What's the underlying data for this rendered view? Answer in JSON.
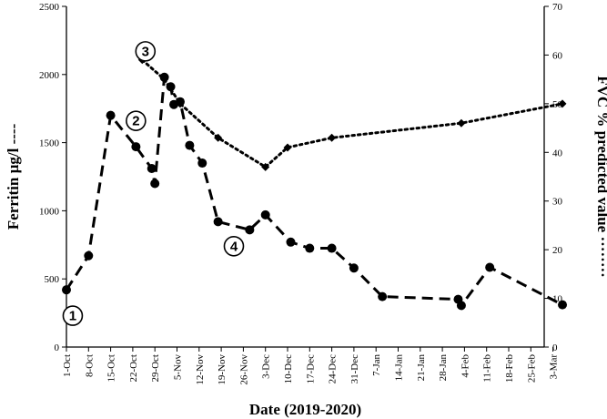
{
  "chart_data": {
    "type": "line",
    "xlabel": "Date (2019-2020)",
    "ylabel_left": "Ferritin µg/l",
    "ylabel_right": "FVC % predicted value",
    "ylim_left": [
      0,
      2500
    ],
    "ylim_right": [
      0,
      70
    ],
    "yticks_left": [
      "0",
      "500",
      "1000",
      "1500",
      "2000",
      "2500"
    ],
    "yticks_right": [
      "0",
      "10",
      "20",
      "30",
      "40",
      "50",
      "60",
      "70"
    ],
    "x_tick_labels": [
      "1-Oct",
      "8-Oct",
      "15-Oct",
      "22-Oct",
      "29-Oct",
      "5-Nov",
      "12-Nov",
      "19-Nov",
      "26-Nov",
      "3-Dec",
      "10-Dec",
      "17-Dec",
      "24-Dec",
      "31-Dec",
      "7-Jan",
      "14-Jan",
      "21-Jan",
      "28-Jan",
      "4-Feb",
      "11-Feb",
      "18-Feb",
      "25-Feb",
      "3-Mar"
    ],
    "series": [
      {
        "axis": "left",
        "style": "dashed",
        "marker": "circle",
        "points": [
          {
            "x": "2019-10-01",
            "y": 420
          },
          {
            "x": "2019-10-08",
            "y": 670
          },
          {
            "x": "2019-10-15",
            "y": 1700
          },
          {
            "x": "2019-10-23",
            "y": 1470
          },
          {
            "x": "2019-10-28",
            "y": 1310
          },
          {
            "x": "2019-10-29",
            "y": 1200
          },
          {
            "x": "2019-11-01",
            "y": 1980
          },
          {
            "x": "2019-11-03",
            "y": 1910
          },
          {
            "x": "2019-11-04",
            "y": 1780
          },
          {
            "x": "2019-11-06",
            "y": 1800
          },
          {
            "x": "2019-11-09",
            "y": 1480
          },
          {
            "x": "2019-11-13",
            "y": 1350
          },
          {
            "x": "2019-11-18",
            "y": 920
          },
          {
            "x": "2019-11-28",
            "y": 860
          },
          {
            "x": "2019-12-03",
            "y": 970
          },
          {
            "x": "2019-12-11",
            "y": 770
          },
          {
            "x": "2019-12-17",
            "y": 725
          },
          {
            "x": "2019-12-24",
            "y": 725
          },
          {
            "x": "2019-12-31",
            "y": 580
          },
          {
            "x": "2020-01-09",
            "y": 370
          },
          {
            "x": "2020-02-02",
            "y": 350
          },
          {
            "x": "2020-02-03",
            "y": 305
          },
          {
            "x": "2020-02-12",
            "y": 585
          },
          {
            "x": "2020-03-06",
            "y": 310
          }
        ]
      },
      {
        "axis": "right",
        "style": "dotted",
        "marker": "diamond",
        "points": [
          {
            "x": "2019-10-25",
            "y": 59
          },
          {
            "x": "2019-11-01",
            "y": 55
          },
          {
            "x": "2019-11-06",
            "y": 50
          },
          {
            "x": "2019-11-18",
            "y": 43
          },
          {
            "x": "2019-12-03",
            "y": 37
          },
          {
            "x": "2019-12-10",
            "y": 41
          },
          {
            "x": "2019-12-24",
            "y": 43
          },
          {
            "x": "2020-02-03",
            "y": 46
          },
          {
            "x": "2020-03-06",
            "y": 50
          }
        ]
      }
    ],
    "annotations": [
      {
        "label": "1",
        "x": "2019-10-03",
        "y_left": 230
      },
      {
        "label": "2",
        "x": "2019-10-23",
        "y_left": 1660
      },
      {
        "label": "3",
        "x": "2019-10-26",
        "y_left": 2170
      },
      {
        "label": "4",
        "x": "2019-11-23",
        "y_left": 740
      }
    ]
  }
}
